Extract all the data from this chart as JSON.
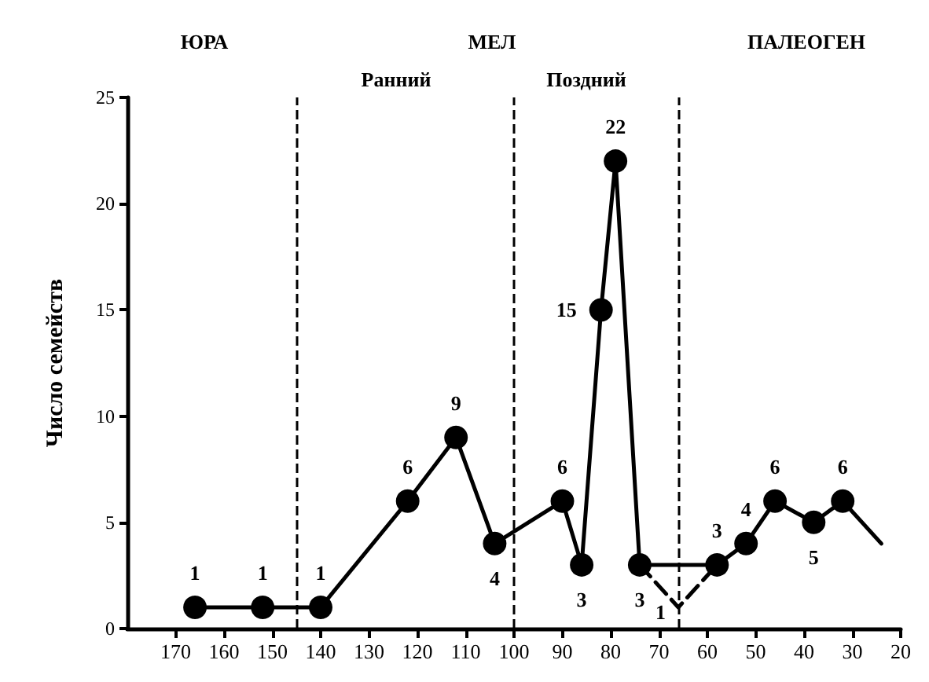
{
  "chart_data": {
    "type": "line",
    "ylabel": "Число семейств",
    "xlim": [
      180,
      20
    ],
    "xticks": [
      170,
      160,
      150,
      140,
      130,
      120,
      110,
      100,
      90,
      80,
      70,
      60,
      50,
      40,
      30,
      20
    ],
    "ylim": [
      0,
      25
    ],
    "yticks": [
      0,
      5,
      10,
      15,
      20,
      25
    ],
    "marker": "circle",
    "line_style": "solid",
    "series": [
      {
        "color": "#000000",
        "x": [
          166,
          152,
          140,
          122,
          112,
          104,
          90,
          86,
          82,
          79,
          74,
          58,
          52,
          46,
          38,
          32
        ],
        "values": [
          1,
          1,
          1,
          6,
          9,
          4,
          6,
          3,
          15,
          22,
          3,
          3,
          4,
          6,
          5,
          6
        ],
        "value_labels": [
          "1",
          "1",
          "1",
          "6",
          "9",
          "4",
          "6",
          "3",
          "15",
          "22",
          "3",
          "3",
          "4",
          "6",
          "5",
          "6"
        ]
      },
      {
        "color": "#000000",
        "x": [
          74,
          66,
          58
        ],
        "values": [
          3,
          1,
          3
        ],
        "line_style": "dashed",
        "marker": "none",
        "value_labels": [
          null,
          "1",
          null
        ]
      },
      {
        "color": "#000000",
        "x": [
          32,
          24
        ],
        "values": [
          6,
          4
        ],
        "marker": "none"
      }
    ],
    "ref_lines": [
      {
        "axis": "x",
        "value": 145,
        "color": "#000000",
        "line_style": "dashed"
      },
      {
        "axis": "x",
        "value": 100,
        "color": "#000000",
        "line_style": "dashed"
      },
      {
        "axis": "x",
        "value": 66,
        "color": "#000000",
        "line_style": "dashed"
      }
    ],
    "annotations": [
      "ЮРА",
      "МЕЛ",
      "ПАЛЕОГЕН",
      "Ранний",
      "Поздний"
    ]
  }
}
